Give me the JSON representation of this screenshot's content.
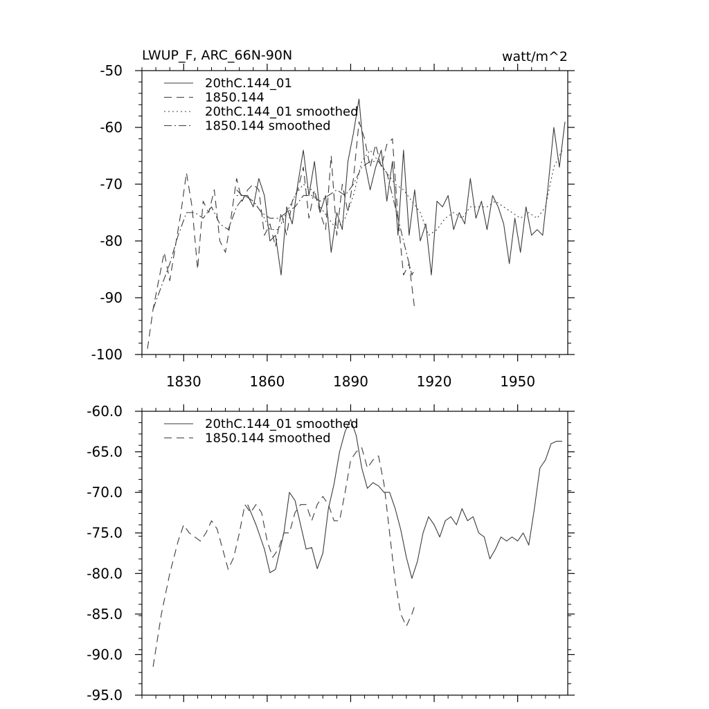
{
  "chart_data": [
    {
      "type": "line",
      "title": "LWUP_F, ARC_66N-90N",
      "units": "watt/m^2",
      "xlim": [
        1815,
        1968
      ],
      "ylim": [
        -100,
        -50
      ],
      "xticks": [
        1830,
        1860,
        1890,
        1920,
        1950
      ],
      "xtick_labels": [
        "1830",
        "1860",
        "1890",
        "1920",
        "1950"
      ],
      "yticks": [
        -50,
        -60,
        -70,
        -80,
        -90,
        -100
      ],
      "ytick_labels": [
        "-50",
        "-60",
        "-70",
        "-80",
        "-90",
        "-100"
      ],
      "legend_position": "top-left",
      "series": [
        {
          "name": "20thC.144_01",
          "style": "solid",
          "x": [
            1849,
            1851,
            1853,
            1855,
            1857,
            1859,
            1861,
            1863,
            1865,
            1867,
            1869,
            1871,
            1873,
            1875,
            1877,
            1879,
            1881,
            1883,
            1885,
            1887,
            1889,
            1891,
            1893,
            1895,
            1897,
            1899,
            1901,
            1903,
            1905,
            1907,
            1909,
            1911,
            1913,
            1915,
            1917,
            1919,
            1921,
            1923,
            1925,
            1927,
            1929,
            1931,
            1933,
            1935,
            1937,
            1939,
            1941,
            1943,
            1945,
            1947,
            1949,
            1951,
            1953,
            1955,
            1957,
            1959,
            1961,
            1963,
            1965,
            1967
          ],
          "values": [
            -71,
            -72,
            -72,
            -74,
            -69,
            -72,
            -80,
            -79,
            -86,
            -74,
            -77,
            -70,
            -64,
            -72,
            -66,
            -75,
            -72,
            -82,
            -75,
            -78,
            -66,
            -61,
            -55,
            -66,
            -71,
            -67,
            -64,
            -73,
            -66,
            -79,
            -64,
            -79,
            -71,
            -80,
            -77,
            -86,
            -73,
            -74,
            -72,
            -78,
            -75,
            -77,
            -69,
            -76,
            -73,
            -78,
            -72,
            -74,
            -77,
            -84,
            -76,
            -82,
            -74,
            -79,
            -78,
            -79,
            -70,
            -60,
            -67,
            -59
          ]
        },
        {
          "name": "1850.144",
          "style": "dashed",
          "x": [
            1817,
            1819,
            1821,
            1823,
            1825,
            1827,
            1829,
            1831,
            1833,
            1835,
            1837,
            1839,
            1841,
            1843,
            1845,
            1847,
            1849,
            1851,
            1853,
            1855,
            1857,
            1859,
            1861,
            1863,
            1865,
            1867,
            1869,
            1871,
            1873,
            1875,
            1877,
            1879,
            1881,
            1883,
            1885,
            1887,
            1889,
            1891,
            1893,
            1895,
            1897,
            1899,
            1901,
            1903,
            1905,
            1907,
            1909,
            1911,
            1913
          ],
          "values": [
            -99,
            -92,
            -87,
            -82,
            -87,
            -81,
            -75,
            -68,
            -74,
            -85,
            -73,
            -75,
            -71,
            -80,
            -82,
            -76,
            -69,
            -73,
            -71,
            -70,
            -71,
            -79,
            -77,
            -81,
            -75,
            -79,
            -73,
            -71,
            -67,
            -76,
            -71,
            -75,
            -78,
            -65,
            -79,
            -70,
            -75,
            -69,
            -59,
            -62,
            -67,
            -63,
            -67,
            -63,
            -62,
            -76,
            -86,
            -84,
            -92
          ]
        },
        {
          "name": "20thC.144_01 smoothed",
          "style": "dotted",
          "x": [
            1849,
            1852,
            1855,
            1858,
            1861,
            1864,
            1867,
            1870,
            1873,
            1876,
            1879,
            1882,
            1885,
            1888,
            1891,
            1894,
            1897,
            1900,
            1903,
            1906,
            1909,
            1912,
            1915,
            1918,
            1921,
            1924,
            1927,
            1930,
            1933,
            1936,
            1939,
            1942,
            1945,
            1948,
            1951,
            1954,
            1957,
            1960,
            1963,
            1966
          ],
          "values": [
            -72,
            -72,
            -73,
            -75,
            -78,
            -78,
            -75,
            -72,
            -70,
            -71,
            -74,
            -76,
            -78,
            -76,
            -72,
            -66,
            -64,
            -66,
            -68,
            -70,
            -71,
            -73,
            -75,
            -79,
            -78,
            -76,
            -75,
            -76,
            -74,
            -74,
            -74,
            -73,
            -74,
            -75,
            -76,
            -75,
            -76,
            -74,
            -67,
            -64
          ]
        },
        {
          "name": "1850.144 smoothed",
          "style": "dashdot",
          "x": [
            1819,
            1822,
            1825,
            1828,
            1831,
            1834,
            1837,
            1840,
            1843,
            1846,
            1849,
            1852,
            1855,
            1858,
            1861,
            1864,
            1867,
            1870,
            1873,
            1876,
            1879,
            1882,
            1885,
            1888,
            1891,
            1894,
            1897,
            1900,
            1903,
            1906,
            1909,
            1912,
            1913
          ],
          "values": [
            -92,
            -88,
            -84,
            -79,
            -75,
            -75,
            -76,
            -74,
            -77,
            -78,
            -74,
            -72,
            -73,
            -75,
            -76,
            -76,
            -75,
            -74,
            -72,
            -72,
            -73,
            -72,
            -71,
            -72,
            -70,
            -67,
            -66,
            -66,
            -68,
            -74,
            -80,
            -86,
            -85
          ]
        }
      ]
    },
    {
      "type": "line",
      "title": "",
      "xlim": [
        1815,
        1968
      ],
      "ylim": [
        -95,
        -60
      ],
      "xticks": [
        1830,
        1860,
        1890,
        1920,
        1950
      ],
      "yticks": [
        -60,
        -65,
        -70,
        -75,
        -80,
        -85,
        -90,
        -95
      ],
      "ytick_labels": [
        "-60.0",
        "-65.0",
        "-70.0",
        "-75.0",
        "-80.0",
        "-85.0",
        "-90.0",
        "-95.0"
      ],
      "legend_position": "top-left",
      "series": [
        {
          "name": "20thC.144_01 smoothed",
          "style": "solid",
          "x": [
            1853,
            1856,
            1859,
            1861,
            1863,
            1866,
            1868,
            1870,
            1872,
            1874,
            1876,
            1878,
            1880,
            1882,
            1884,
            1886,
            1888,
            1890,
            1892,
            1894,
            1896,
            1898,
            1900,
            1902,
            1904,
            1906,
            1908,
            1910,
            1912,
            1914,
            1916,
            1918,
            1920,
            1922,
            1924,
            1926,
            1928,
            1930,
            1932,
            1934,
            1936,
            1938,
            1940,
            1942,
            1944,
            1946,
            1948,
            1950,
            1952,
            1954,
            1956,
            1958,
            1960,
            1962,
            1964,
            1966
          ],
          "values": [
            -71.5,
            -74,
            -77,
            -79.9,
            -79.5,
            -75,
            -70,
            -71,
            -74,
            -77,
            -76.8,
            -79.4,
            -77.5,
            -72,
            -69,
            -65,
            -62.5,
            -61,
            -63,
            -67,
            -69.5,
            -68.8,
            -69.2,
            -70,
            -70,
            -72,
            -74.6,
            -78,
            -80.6,
            -78.5,
            -75,
            -73,
            -74,
            -75.5,
            -73.5,
            -73,
            -74,
            -72,
            -73.5,
            -73,
            -75,
            -75.5,
            -78.2,
            -77,
            -75.5,
            -76,
            -75.5,
            -76,
            -75,
            -76.5,
            -72,
            -67,
            -66,
            -64,
            -63.7,
            -63.7
          ]
        },
        {
          "name": "1850.144 smoothed",
          "style": "dashed",
          "x": [
            1819,
            1822,
            1825,
            1828,
            1830,
            1832,
            1834,
            1836,
            1838,
            1840,
            1842,
            1844,
            1846,
            1848,
            1850,
            1852,
            1854,
            1856,
            1858,
            1860,
            1862,
            1864,
            1866,
            1868,
            1870,
            1872,
            1874,
            1876,
            1878,
            1880,
            1882,
            1884,
            1886,
            1888,
            1890,
            1892,
            1894,
            1896,
            1898,
            1900,
            1902,
            1904,
            1906,
            1908,
            1910,
            1912,
            1913
          ],
          "values": [
            -91.5,
            -85,
            -80,
            -76,
            -74,
            -75,
            -75.5,
            -76,
            -75,
            -73.5,
            -74.5,
            -77,
            -79.5,
            -78,
            -75,
            -71.5,
            -72.5,
            -71.5,
            -72.5,
            -76,
            -78,
            -77,
            -75,
            -75,
            -72.5,
            -71.5,
            -71.5,
            -73.5,
            -71.5,
            -70.5,
            -71.5,
            -73.5,
            -73.5,
            -70,
            -66,
            -65,
            -64.5,
            -67,
            -66,
            -65.5,
            -69,
            -75,
            -81,
            -85,
            -86.5,
            -85,
            -84
          ]
        }
      ]
    }
  ]
}
